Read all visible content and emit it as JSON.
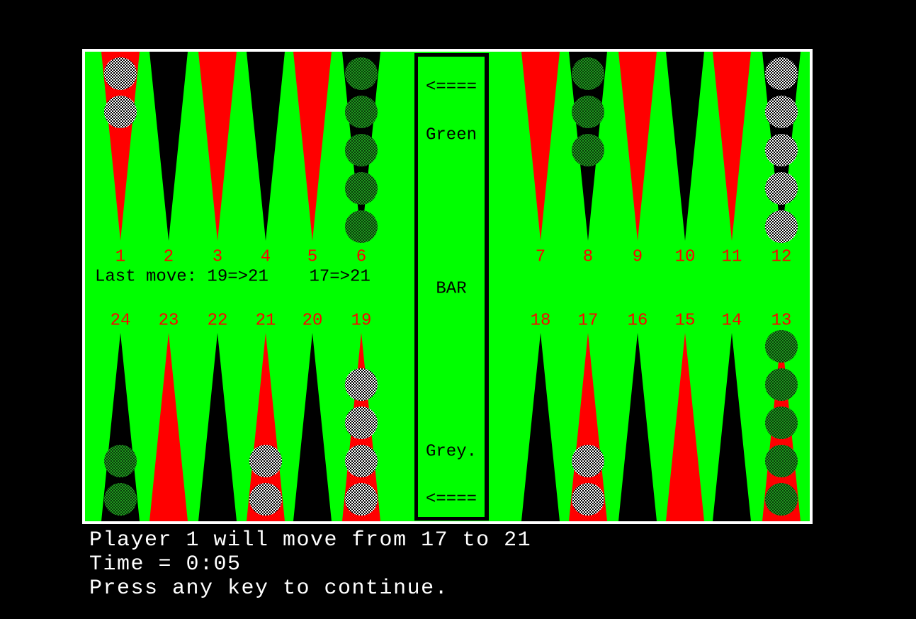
{
  "board": {
    "top_points": [
      {
        "label": "1",
        "triangle": "#ff0000",
        "checkers": 2,
        "checker_color": "grey"
      },
      {
        "label": "2",
        "triangle": "#000000",
        "checkers": 0
      },
      {
        "label": "3",
        "triangle": "#ff0000",
        "checkers": 0
      },
      {
        "label": "4",
        "triangle": "#000000",
        "checkers": 0
      },
      {
        "label": "5",
        "triangle": "#ff0000",
        "checkers": 0
      },
      {
        "label": "6",
        "triangle": "#000000",
        "checkers": 5,
        "checker_color": "green"
      },
      {
        "label": "7",
        "triangle": "#ff0000",
        "checkers": 0
      },
      {
        "label": "8",
        "triangle": "#000000",
        "checkers": 3,
        "checker_color": "green"
      },
      {
        "label": "9",
        "triangle": "#ff0000",
        "checkers": 0
      },
      {
        "label": "10",
        "triangle": "#000000",
        "checkers": 0
      },
      {
        "label": "11",
        "triangle": "#ff0000",
        "checkers": 0
      },
      {
        "label": "12",
        "triangle": "#000000",
        "checkers": 5,
        "checker_color": "grey"
      }
    ],
    "bottom_points": [
      {
        "label": "24",
        "triangle": "#000000",
        "checkers": 2,
        "checker_color": "green"
      },
      {
        "label": "23",
        "triangle": "#ff0000",
        "checkers": 0
      },
      {
        "label": "22",
        "triangle": "#000000",
        "checkers": 0
      },
      {
        "label": "21",
        "triangle": "#ff0000",
        "checkers": 2,
        "checker_color": "grey"
      },
      {
        "label": "20",
        "triangle": "#000000",
        "checkers": 0
      },
      {
        "label": "19",
        "triangle": "#ff0000",
        "checkers": 4,
        "checker_color": "grey"
      },
      {
        "label": "18",
        "triangle": "#000000",
        "checkers": 0
      },
      {
        "label": "17",
        "triangle": "#ff0000",
        "checkers": 2,
        "checker_color": "grey"
      },
      {
        "label": "16",
        "triangle": "#000000",
        "checkers": 0
      },
      {
        "label": "15",
        "triangle": "#ff0000",
        "checkers": 0
      },
      {
        "label": "14",
        "triangle": "#000000",
        "checkers": 0
      },
      {
        "label": "13",
        "triangle": "#ff0000",
        "checkers": 5,
        "checker_color": "green"
      }
    ],
    "last_move": "Last move: 19=>21    17=>21",
    "bar": {
      "arrow_top": "<====",
      "top_player": "Green",
      "label": "BAR",
      "bottom_player": "Grey.",
      "arrow_bottom": "<===="
    }
  },
  "status": {
    "line1": "Player 1 will move from 17 to 21",
    "line2": "Time = 0:05",
    "line3": "Press any key to continue."
  }
}
